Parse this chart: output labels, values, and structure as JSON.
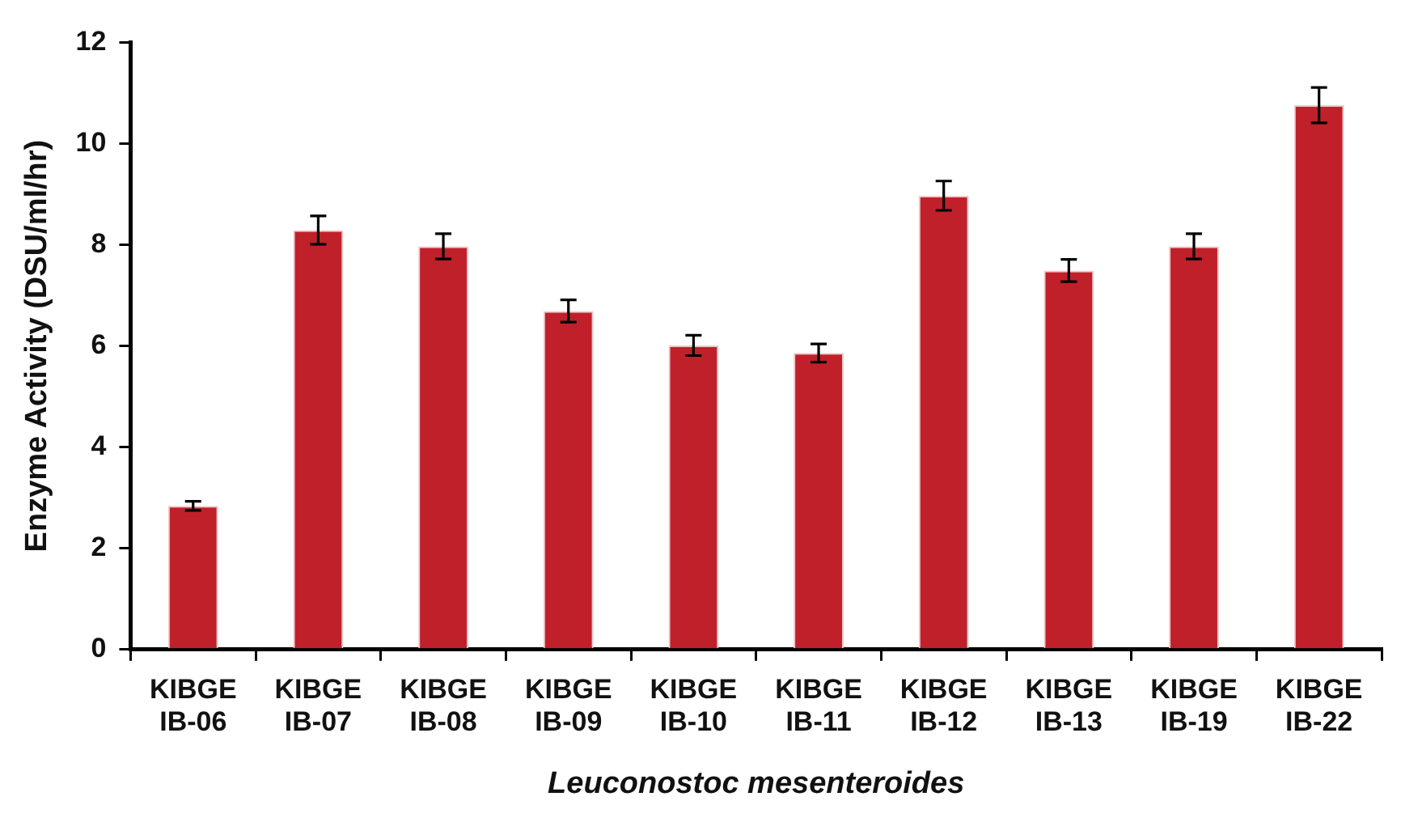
{
  "chart_data": {
    "type": "bar",
    "xlabel": "Leuconostoc mesenteroides",
    "ylabel": "Enzyme Activity (DSU/ml/hr)",
    "categories": [
      "KIBGE IB-06",
      "KIBGE IB-07",
      "KIBGE IB-08",
      "KIBGE IB-09",
      "KIBGE IB-10",
      "KIBGE IB-11",
      "KIBGE IB-12",
      "KIBGE IB-13",
      "KIBGE IB-19",
      "KIBGE IB-22"
    ],
    "values": [
      2.84,
      8.29,
      7.97,
      6.69,
      6.01,
      5.86,
      8.97,
      7.49,
      7.97,
      10.76
    ],
    "errors": [
      0.09,
      0.28,
      0.25,
      0.22,
      0.2,
      0.18,
      0.29,
      0.22,
      0.25,
      0.35
    ],
    "color": "#c0202a",
    "ylim": [
      0,
      12
    ],
    "yticks": [
      0,
      2,
      4,
      6,
      8,
      10,
      12
    ],
    "grid": false,
    "legend": false
  }
}
